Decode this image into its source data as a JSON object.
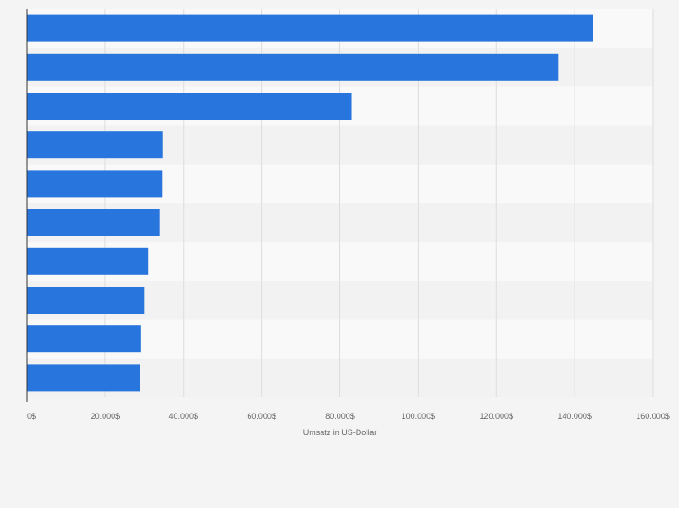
{
  "chart_data": {
    "type": "bar",
    "orientation": "horizontal",
    "categories": [
      "",
      "",
      "",
      "",
      "",
      "",
      "",
      "",
      "",
      ""
    ],
    "values": [
      144800,
      135900,
      83000,
      34700,
      34600,
      34000,
      30900,
      30000,
      29200,
      29000
    ],
    "xlim": [
      0,
      160000
    ],
    "x_ticks": [
      0,
      20000,
      40000,
      60000,
      80000,
      100000,
      120000,
      140000,
      160000
    ],
    "x_tick_labels": [
      "0$",
      "20.000$",
      "40.000$",
      "60.000$",
      "80.000$",
      "100.000$",
      "120.000$",
      "140.000$",
      "160.000$"
    ],
    "xlabel": "Umsatz in US-Dollar",
    "ylabel": "",
    "title": "",
    "grid": true,
    "legend": "none"
  },
  "colors": {
    "bar": "#2876dd",
    "band_light": "#f9f9f9",
    "band_dark": "#f2f2f2",
    "gridline": "#dddddd",
    "axis": "#333333",
    "text": "#666666",
    "background": "#f4f4f4"
  }
}
